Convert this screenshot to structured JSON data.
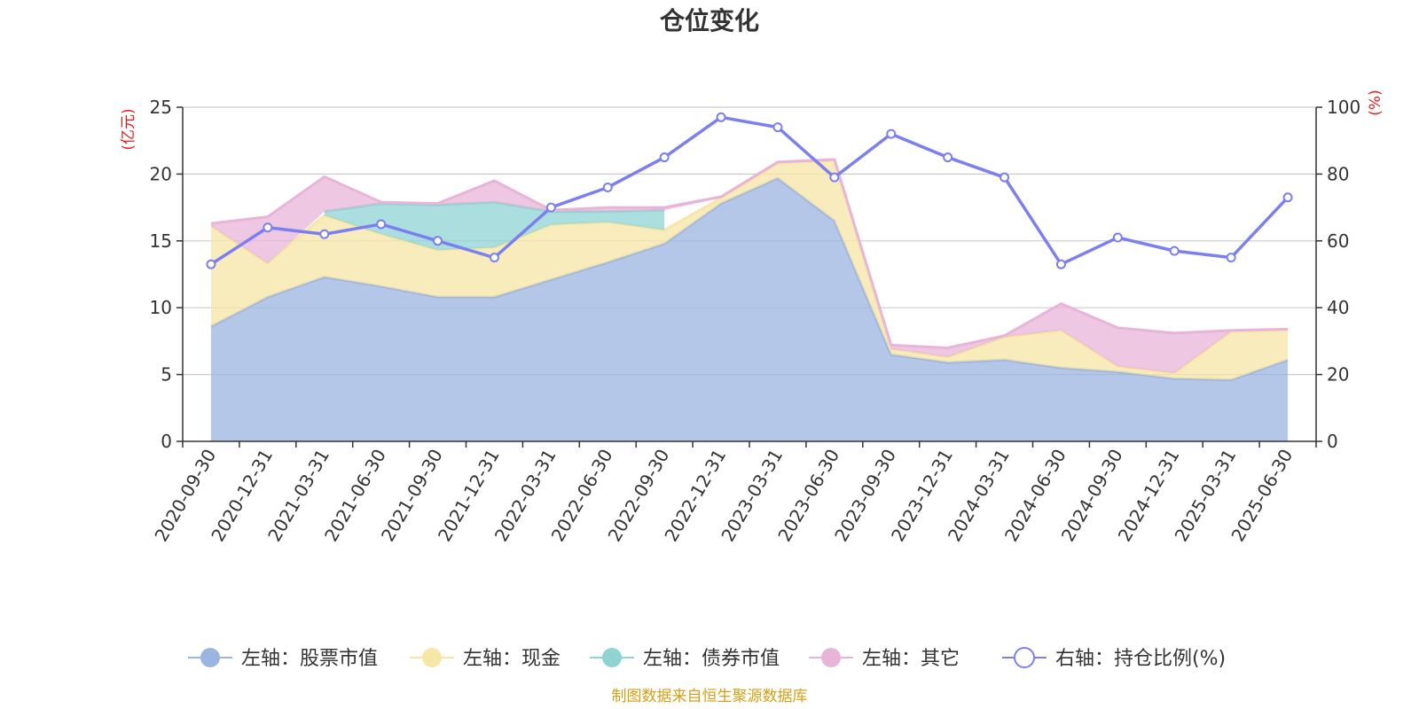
{
  "chart_data": {
    "type": "area",
    "title": "仓位变化",
    "left_axis_unit": "(亿元)",
    "right_axis_unit": "(%)",
    "categories": [
      "2020-09-30",
      "2020-12-31",
      "2021-03-31",
      "2021-06-30",
      "2021-09-30",
      "2021-12-31",
      "2022-03-31",
      "2022-06-30",
      "2022-09-30",
      "2022-12-31",
      "2023-03-31",
      "2023-06-30",
      "2023-09-30",
      "2023-12-31",
      "2024-03-31",
      "2024-06-30",
      "2024-09-30",
      "2024-12-31",
      "2025-03-31",
      "2025-06-30"
    ],
    "ylim_left": [
      0,
      25
    ],
    "yticks_left": [
      0,
      5,
      10,
      15,
      20,
      25
    ],
    "ylim_right": [
      0,
      100
    ],
    "yticks_right": [
      0,
      20,
      40,
      60,
      80,
      100
    ],
    "grid": true,
    "legend_position": "bottom",
    "series": [
      {
        "name": "左轴：股票市值",
        "axis": "left",
        "kind": "stacked-area",
        "color": "#9cb4e0",
        "values": [
          8.6,
          10.8,
          12.3,
          11.6,
          10.8,
          10.8,
          12.1,
          13.4,
          14.8,
          17.8,
          19.7,
          16.5,
          6.5,
          5.9,
          6.1,
          5.5,
          5.2,
          4.7,
          4.6,
          6.1
        ]
      },
      {
        "name": "左轴：现金",
        "axis": "left",
        "kind": "stacked-area",
        "color": "#f7e6a6",
        "values": [
          7.5,
          2.5,
          4.6,
          3.9,
          3.5,
          3.7,
          4.1,
          3.0,
          1.0,
          0.4,
          1.1,
          4.5,
          0.4,
          0.4,
          1.7,
          2.8,
          0.4,
          0.4,
          3.6,
          2.2
        ]
      },
      {
        "name": "左轴：债券市值",
        "axis": "left",
        "kind": "stacked-area",
        "color": "#8fd3d3",
        "values": [
          null,
          null,
          0.3,
          2.3,
          3.4,
          3.4,
          1.0,
          0.8,
          1.5,
          null,
          null,
          null,
          null,
          null,
          null,
          null,
          null,
          null,
          null,
          null
        ]
      },
      {
        "name": "左轴：其它",
        "axis": "left",
        "kind": "stacked-area",
        "color": "#e8b4d8",
        "values": [
          0.2,
          3.5,
          2.6,
          0.1,
          0.1,
          1.6,
          0.1,
          0.3,
          0.2,
          0.1,
          0.1,
          0.1,
          0.3,
          0.7,
          0.1,
          2.0,
          2.9,
          3.0,
          0.1,
          0.1
        ]
      },
      {
        "name": "右轴：持仓比例(%)",
        "axis": "right",
        "kind": "line",
        "color": "#7b7ff0",
        "values": [
          53,
          64,
          62,
          65,
          60,
          55,
          70,
          76,
          85,
          97,
          94,
          79,
          92,
          85,
          79,
          53,
          61,
          57,
          55,
          73
        ]
      }
    ],
    "source_note": "制图数据来自恒生聚源数据库"
  }
}
